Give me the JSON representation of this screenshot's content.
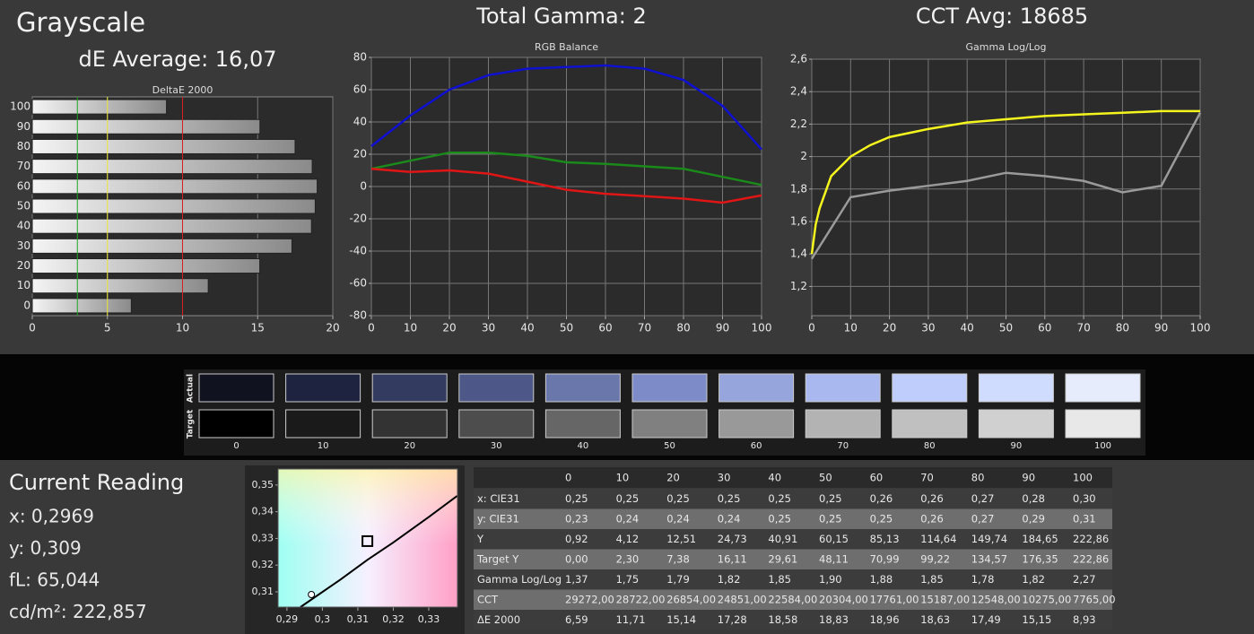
{
  "header": {
    "title": "Grayscale",
    "de_average": "dE Average: 16,07",
    "total_gamma": "Total Gamma: 2",
    "cct_avg": "CCT Avg: 18685"
  },
  "chart_data": [
    {
      "type": "bar",
      "title": "DeltaE 2000",
      "orientation": "horizontal",
      "categories": [
        100,
        90,
        80,
        70,
        60,
        50,
        40,
        30,
        20,
        10,
        0
      ],
      "values": [
        8.93,
        15.15,
        17.49,
        18.63,
        18.96,
        18.83,
        18.58,
        17.28,
        15.14,
        11.71,
        6.59
      ],
      "xlim": [
        0,
        20
      ],
      "xticks": [
        0,
        5,
        10,
        15,
        20
      ],
      "grid": true,
      "reference_lines": [
        {
          "value": 3,
          "color": "#1fa51f"
        },
        {
          "value": 5,
          "color": "#e8e83a"
        },
        {
          "value": 10,
          "color": "#d42020"
        }
      ]
    },
    {
      "type": "line",
      "title": "RGB Balance",
      "x": [
        0,
        10,
        20,
        30,
        40,
        50,
        60,
        70,
        80,
        90,
        100
      ],
      "series": [
        {
          "color": "#1010d0",
          "values": [
            25,
            44,
            60,
            69,
            73,
            74,
            75,
            73,
            66,
            50,
            23
          ]
        },
        {
          "color": "#1a8a1a",
          "values": [
            11,
            16,
            21,
            21,
            19,
            15,
            14,
            12.5,
            11,
            6,
            1
          ]
        },
        {
          "color": "#e01515",
          "values": [
            11,
            9,
            10,
            8,
            3,
            -2,
            -4.5,
            -6,
            -7.5,
            -10,
            -5.5
          ]
        }
      ],
      "xlim": [
        0,
        100
      ],
      "xticks": [
        0,
        10,
        20,
        30,
        40,
        50,
        60,
        70,
        80,
        90,
        100
      ],
      "ylim": [
        -80,
        80
      ],
      "yticks": [
        -80,
        -60,
        -40,
        -20,
        0,
        20,
        40,
        60,
        80
      ],
      "grid": true
    },
    {
      "type": "line",
      "title": "Gamma Log/Log",
      "series": [
        {
          "color": "#f5f51e",
          "x": [
            0,
            1,
            2,
            5,
            10,
            15,
            20,
            30,
            40,
            50,
            60,
            70,
            80,
            90,
            100
          ],
          "values": [
            1.4,
            1.58,
            1.68,
            1.88,
            2.0,
            2.07,
            2.12,
            2.17,
            2.21,
            2.23,
            2.25,
            2.26,
            2.27,
            2.28,
            2.28
          ]
        },
        {
          "color": "#9a9a9a",
          "x": [
            0,
            10,
            20,
            30,
            40,
            50,
            60,
            70,
            80,
            90,
            100
          ],
          "values": [
            1.37,
            1.75,
            1.79,
            1.82,
            1.85,
            1.9,
            1.88,
            1.85,
            1.78,
            1.82,
            2.27
          ]
        }
      ],
      "xlim": [
        0,
        100
      ],
      "xticks": [
        0,
        10,
        20,
        30,
        40,
        50,
        60,
        70,
        80,
        90,
        100
      ],
      "ylim": [
        1.02,
        2.6
      ],
      "yticks": [
        {
          "value": 1.2,
          "label": "1,2"
        },
        {
          "value": 1.4,
          "label": "1,4"
        },
        {
          "value": 1.6,
          "label": "1,6"
        },
        {
          "value": 1.8,
          "label": "1,8"
        },
        2,
        {
          "value": 2.2,
          "label": "2,2"
        },
        {
          "value": 2.4,
          "label": "2,4"
        },
        {
          "value": 2.6,
          "label": "2,6"
        }
      ],
      "grid": true
    },
    {
      "type": "scatter",
      "locus": {
        "x": [
          0.2938,
          0.305,
          0.3127,
          0.32,
          0.33,
          0.338
        ],
        "y": [
          0.3043,
          0.3145,
          0.322,
          0.3285,
          0.338,
          0.3459
        ]
      },
      "target": {
        "x": 0.3127,
        "y": 0.329
      },
      "measured": {
        "x": 0.2969,
        "y": 0.309
      },
      "xlim": [
        0.2875,
        0.3381
      ],
      "xticks": [
        {
          "value": 0.29,
          "label": "0,29"
        },
        {
          "value": 0.3,
          "label": "0,3"
        },
        {
          "value": 0.31,
          "label": "0,31"
        },
        {
          "value": 0.32,
          "label": "0,32"
        },
        {
          "value": 0.33,
          "label": "0,33"
        }
      ],
      "ylim": [
        0.3043,
        0.356
      ],
      "yticks": [
        {
          "value": 0.31,
          "label": "0,31"
        },
        {
          "value": 0.32,
          "label": "0,32"
        },
        {
          "value": 0.33,
          "label": "0,33"
        },
        {
          "value": 0.34,
          "label": "0,34"
        },
        {
          "value": 0.35,
          "label": "0,35"
        }
      ],
      "grid": false
    }
  ],
  "swatches": {
    "row_labels": [
      "Actual",
      "Target"
    ],
    "labels": [
      "0",
      "10",
      "20",
      "30",
      "40",
      "50",
      "60",
      "70",
      "80",
      "90",
      "100"
    ],
    "actual": [
      "#10121f",
      "#1e2340",
      "#333b60",
      "#4d5888",
      "#6a77aa",
      "#7d8cc8",
      "#96a5dc",
      "#aab8f0",
      "#bfcdfd",
      "#cfdcfe",
      "#e6ecfc"
    ],
    "target": [
      "#000000",
      "#1a1a1a",
      "#333333",
      "#4d4d4d",
      "#666666",
      "#808080",
      "#999999",
      "#b3b3b3",
      "#c0c0c0",
      "#d0d0d0",
      "#e8e8e8"
    ]
  },
  "current_reading": {
    "title": "Current Reading",
    "lines": [
      "x: 0,2969",
      "y: 0,309",
      "fL: 65,044",
      "cd/m²: 222,857"
    ]
  },
  "table": {
    "columns": [
      "0",
      "10",
      "20",
      "30",
      "40",
      "50",
      "60",
      "70",
      "80",
      "90",
      "100"
    ],
    "rows": [
      {
        "label": "x: CIE31",
        "cells": [
          "0,25",
          "0,25",
          "0,25",
          "0,25",
          "0,25",
          "0,25",
          "0,26",
          "0,26",
          "0,27",
          "0,28",
          "0,30"
        ]
      },
      {
        "label": "y: CIE31",
        "cells": [
          "0,23",
          "0,24",
          "0,24",
          "0,24",
          "0,25",
          "0,25",
          "0,25",
          "0,26",
          "0,27",
          "0,29",
          "0,31"
        ]
      },
      {
        "label": "Y",
        "cells": [
          "0,92",
          "4,12",
          "12,51",
          "24,73",
          "40,91",
          "60,15",
          "85,13",
          "114,64",
          "149,74",
          "184,65",
          "222,86"
        ]
      },
      {
        "label": "Target Y",
        "cells": [
          "0,00",
          "2,30",
          "7,38",
          "16,11",
          "29,61",
          "48,11",
          "70,99",
          "99,22",
          "134,57",
          "176,35",
          "222,86"
        ]
      },
      {
        "label": "Gamma Log/Log",
        "cells": [
          "1,37",
          "1,75",
          "1,79",
          "1,82",
          "1,85",
          "1,90",
          "1,88",
          "1,85",
          "1,78",
          "1,82",
          "2,27"
        ]
      },
      {
        "label": "CCT",
        "cells": [
          "29272,00",
          "28722,00",
          "26854,00",
          "24851,00",
          "22584,00",
          "20304,00",
          "17761,00",
          "15187,00",
          "12548,00",
          "10275,00",
          "7765,00"
        ]
      },
      {
        "label": "ΔE 2000",
        "cells": [
          "6,59",
          "11,71",
          "15,14",
          "17,28",
          "18,58",
          "18,83",
          "18,96",
          "18,63",
          "17,49",
          "15,15",
          "8,93"
        ]
      }
    ]
  }
}
